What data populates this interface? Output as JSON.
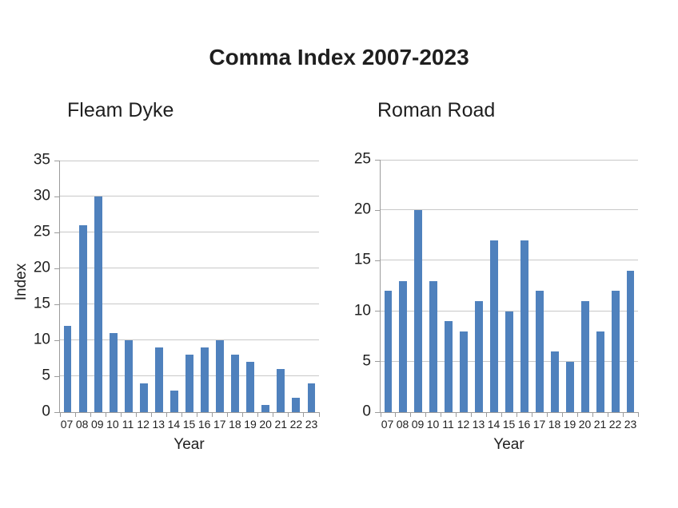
{
  "title": "Comma Index 2007-2023",
  "colors": {
    "bar": "#4F81BD",
    "gridline": "#C8C8C8",
    "axis": "#9B9B9B",
    "text": "#1F1F1F"
  },
  "chart_data": [
    {
      "type": "bar",
      "title": "Fleam Dyke",
      "categories": [
        "07",
        "08",
        "09",
        "10",
        "11",
        "12",
        "13",
        "14",
        "15",
        "16",
        "17",
        "18",
        "19",
        "20",
        "21",
        "22",
        "23"
      ],
      "values": [
        12,
        26,
        30,
        11,
        10,
        4,
        9,
        3,
        8,
        9,
        10,
        8,
        7,
        1,
        6,
        2,
        4
      ],
      "xlabel": "Year",
      "ylabel": "Index",
      "ylim": [
        0,
        35
      ],
      "ytick_step": 5,
      "grid": true,
      "legend": "none",
      "bar_color": "#4F81BD"
    },
    {
      "type": "bar",
      "title": "Roman Road",
      "categories": [
        "07",
        "08",
        "09",
        "10",
        "11",
        "12",
        "13",
        "14",
        "15",
        "16",
        "17",
        "18",
        "19",
        "20",
        "21",
        "22",
        "23"
      ],
      "values": [
        12,
        13,
        20,
        13,
        9,
        8,
        11,
        17,
        10,
        17,
        12,
        6,
        5,
        11,
        8,
        12,
        14
      ],
      "xlabel": "Year",
      "ylabel": "",
      "ylim": [
        0,
        25
      ],
      "ytick_step": 5,
      "grid": true,
      "legend": "none",
      "bar_color": "#4F81BD"
    }
  ]
}
